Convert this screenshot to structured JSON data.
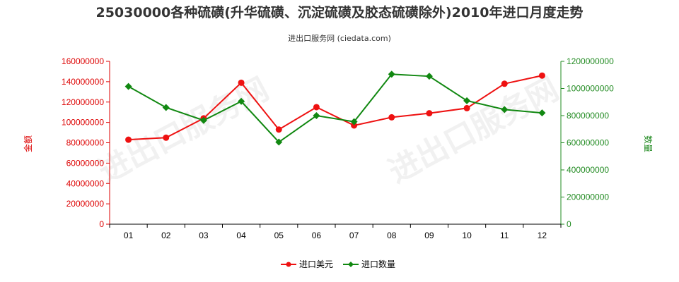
{
  "chart_data": {
    "type": "line",
    "title": "25030000各种硫磺(升华硫磺、沉淀硫磺及胶态硫磺除外)2010年进口月度走势",
    "subtitle": "进出口服务网 (ciedata.com)",
    "categories": [
      "01",
      "02",
      "03",
      "04",
      "05",
      "06",
      "07",
      "08",
      "09",
      "10",
      "11",
      "12"
    ],
    "y_left": {
      "label": "金额",
      "range": [
        0,
        160000000
      ],
      "ticks": [
        0,
        20000000,
        40000000,
        60000000,
        80000000,
        100000000,
        120000000,
        140000000,
        160000000
      ],
      "tick_labels": [
        "0",
        "20000000",
        "40000000",
        "60000000",
        "80000000",
        "100000000",
        "120000000",
        "140000000",
        "160000000"
      ]
    },
    "y_right": {
      "label": "数量",
      "range": [
        0,
        1200000000
      ],
      "ticks": [
        0,
        200000000,
        400000000,
        600000000,
        800000000,
        1000000000,
        1200000000
      ],
      "tick_labels": [
        "0",
        "200000000",
        "400000000",
        "600000000",
        "800000000",
        "1000000000",
        "1200000000"
      ]
    },
    "series": [
      {
        "name": "进口美元",
        "axis": "left",
        "color": "#ee1111",
        "values": [
          83000000,
          85000000,
          104000000,
          139000000,
          93000000,
          115000000,
          97000000,
          105000000,
          109000000,
          114000000,
          138000000,
          146000000
        ]
      },
      {
        "name": "进口数量",
        "axis": "right",
        "color": "#118811",
        "values": [
          1015000000,
          860000000,
          765000000,
          905000000,
          605000000,
          800000000,
          755000000,
          1105000000,
          1090000000,
          910000000,
          845000000,
          820000000
        ]
      }
    ],
    "grid": false,
    "legend_position": "bottom-center",
    "watermark": "进出口服务网"
  }
}
